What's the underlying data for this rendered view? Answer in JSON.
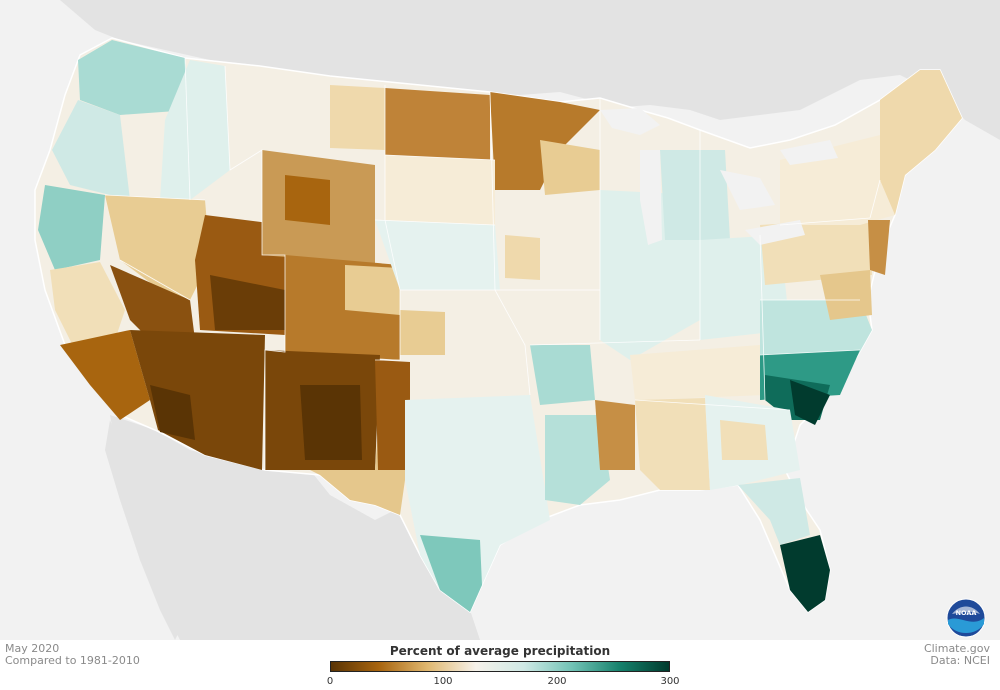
{
  "legend": {
    "title": "Percent of average precipitation",
    "ticks": [
      "0",
      "100",
      "200",
      "300"
    ],
    "colors": [
      "#5a3405",
      "#a8650f",
      "#e0b870",
      "#f6f2ea",
      "#cfe9e5",
      "#71c2b5",
      "#15806b",
      "#013b2e"
    ]
  },
  "footer": {
    "date": "May 2020",
    "baseline": "Compared to 1981-2010",
    "site": "Climate.gov",
    "source": "Data: NCEI"
  },
  "logo": {
    "text": "NOAA",
    "icon": "noaa-logo-icon"
  },
  "colors": {
    "background": "#f2f2f2",
    "land_outside": "#e3e3e3",
    "dry_extreme": "#5a3405",
    "wet_extreme": "#013b2e",
    "near_normal": "#f6f2ea"
  }
}
